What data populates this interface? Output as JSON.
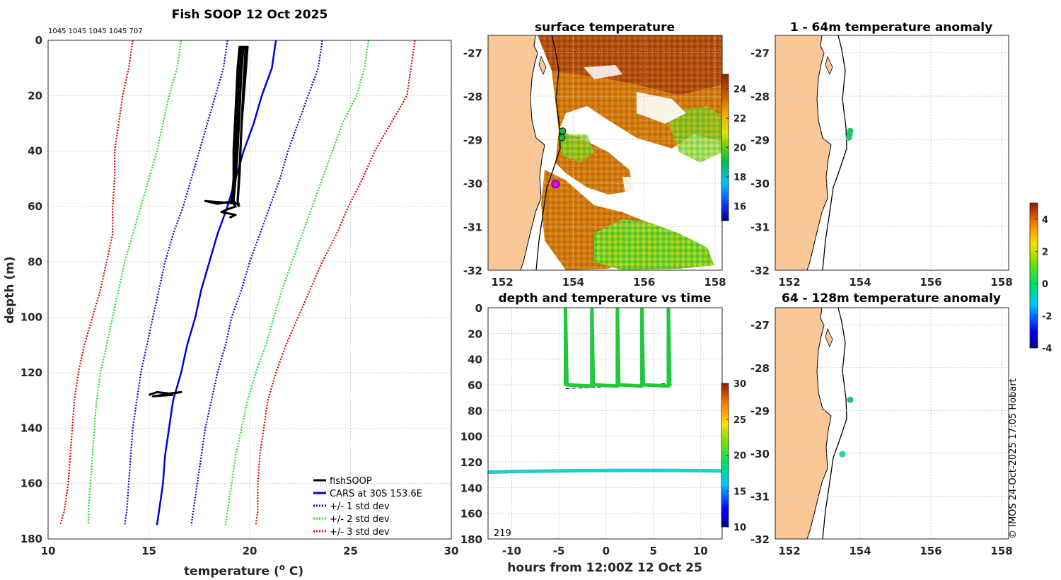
{
  "chart_data": [
    {
      "type": "line",
      "title": "Fish SOOP 12 Oct 2025",
      "xlabel": "temperature (",
      "xlabel_sup": "o",
      "xlabel_tail": " C)",
      "ylabel": "depth (m)",
      "xlim": [
        10,
        30
      ],
      "ylim": [
        180,
        0
      ],
      "xticks": [
        "10",
        "15",
        "20",
        "25",
        "30"
      ],
      "yticks": [
        "0",
        "20",
        "40",
        "60",
        "80",
        "100",
        "120",
        "140",
        "160",
        "180"
      ],
      "profile_counts": "1045 1045 1045 1045 707",
      "legend": [
        "fishSOOP",
        "CARS at 30S 153.6E",
        "+/- 1 std dev",
        "+/- 2 std dev",
        "+/- 3 std dev"
      ],
      "colors": {
        "fishsoop": "#000000",
        "cars": "#0000dd",
        "sd1": "#0000dd",
        "sd2": "#22dd22",
        "sd3": "#dd0000"
      },
      "series": [
        {
          "name": "CARS at 30S 153.6E",
          "points": [
            [
              21.3,
              0
            ],
            [
              21.1,
              10
            ],
            [
              20.6,
              20
            ],
            [
              20.2,
              30
            ],
            [
              19.7,
              40
            ],
            [
              19.3,
              50
            ],
            [
              18.9,
              60
            ],
            [
              18.4,
              70
            ],
            [
              18.0,
              80
            ],
            [
              17.6,
              90
            ],
            [
              17.3,
              100
            ],
            [
              16.9,
              110
            ],
            [
              16.6,
              120
            ],
            [
              16.2,
              130
            ],
            [
              16.0,
              140
            ],
            [
              15.8,
              150
            ],
            [
              15.7,
              160
            ],
            [
              15.5,
              170
            ],
            [
              15.4,
              175
            ]
          ]
        },
        {
          "name": "+1 std dev",
          "points": [
            [
              23.6,
              0
            ],
            [
              23.4,
              10
            ],
            [
              22.9,
              20
            ],
            [
              22.4,
              30
            ],
            [
              21.9,
              40
            ],
            [
              21.5,
              50
            ],
            [
              21.0,
              60
            ],
            [
              20.5,
              70
            ],
            [
              20.0,
              80
            ],
            [
              19.6,
              90
            ],
            [
              19.1,
              100
            ],
            [
              18.8,
              110
            ],
            [
              18.4,
              120
            ],
            [
              18.1,
              130
            ],
            [
              17.8,
              140
            ],
            [
              17.6,
              150
            ],
            [
              17.4,
              160
            ],
            [
              17.2,
              170
            ],
            [
              17.1,
              175
            ]
          ]
        },
        {
          "name": "-1 std dev",
          "points": [
            [
              18.9,
              0
            ],
            [
              18.7,
              10
            ],
            [
              18.3,
              20
            ],
            [
              17.9,
              30
            ],
            [
              17.5,
              40
            ],
            [
              17.1,
              50
            ],
            [
              16.7,
              60
            ],
            [
              16.2,
              70
            ],
            [
              15.8,
              80
            ],
            [
              15.5,
              90
            ],
            [
              15.2,
              100
            ],
            [
              14.9,
              110
            ],
            [
              14.6,
              120
            ],
            [
              14.4,
              130
            ],
            [
              14.2,
              140
            ],
            [
              14.1,
              150
            ],
            [
              14.0,
              160
            ],
            [
              13.9,
              170
            ],
            [
              13.8,
              175
            ]
          ]
        },
        {
          "name": "+2 std dev",
          "points": [
            [
              25.9,
              0
            ],
            [
              25.7,
              10
            ],
            [
              25.3,
              20
            ],
            [
              24.6,
              30
            ],
            [
              24.1,
              40
            ],
            [
              23.6,
              50
            ],
            [
              23.1,
              60
            ],
            [
              22.6,
              70
            ],
            [
              22.1,
              80
            ],
            [
              21.6,
              90
            ],
            [
              21.2,
              100
            ],
            [
              20.8,
              110
            ],
            [
              20.3,
              120
            ],
            [
              19.9,
              130
            ],
            [
              19.6,
              140
            ],
            [
              19.3,
              150
            ],
            [
              19.1,
              160
            ],
            [
              18.9,
              170
            ],
            [
              18.8,
              175
            ]
          ]
        },
        {
          "name": "-2 std dev",
          "points": [
            [
              16.6,
              0
            ],
            [
              16.4,
              10
            ],
            [
              16.0,
              20
            ],
            [
              15.7,
              30
            ],
            [
              15.4,
              40
            ],
            [
              15.0,
              50
            ],
            [
              14.6,
              60
            ],
            [
              14.2,
              70
            ],
            [
              13.8,
              80
            ],
            [
              13.5,
              90
            ],
            [
              13.2,
              100
            ],
            [
              12.9,
              110
            ],
            [
              12.6,
              120
            ],
            [
              12.4,
              130
            ],
            [
              12.3,
              140
            ],
            [
              12.2,
              150
            ],
            [
              12.1,
              160
            ],
            [
              12.0,
              170
            ],
            [
              12.0,
              175
            ]
          ]
        },
        {
          "name": "+3 std dev",
          "points": [
            [
              28.2,
              0
            ],
            [
              28.0,
              10
            ],
            [
              27.8,
              20
            ],
            [
              27.0,
              30
            ],
            [
              26.2,
              40
            ],
            [
              25.6,
              50
            ],
            [
              24.9,
              60
            ],
            [
              24.3,
              70
            ],
            [
              23.6,
              80
            ],
            [
              23.0,
              90
            ],
            [
              22.4,
              100
            ],
            [
              21.8,
              110
            ],
            [
              21.3,
              120
            ],
            [
              20.9,
              130
            ],
            [
              20.7,
              140
            ],
            [
              20.5,
              150
            ],
            [
              20.4,
              160
            ],
            [
              20.4,
              170
            ],
            [
              20.3,
              175
            ]
          ]
        },
        {
          "name": "-3 std dev",
          "points": [
            [
              14.2,
              0
            ],
            [
              14.0,
              10
            ],
            [
              13.7,
              20
            ],
            [
              13.5,
              30
            ],
            [
              13.3,
              40
            ],
            [
              13.3,
              50
            ],
            [
              13.2,
              60
            ],
            [
              13.2,
              70
            ],
            [
              12.9,
              80
            ],
            [
              12.6,
              90
            ],
            [
              12.2,
              100
            ],
            [
              11.8,
              110
            ],
            [
              11.5,
              120
            ],
            [
              11.3,
              130
            ],
            [
              11.2,
              140
            ],
            [
              11.1,
              150
            ],
            [
              11.0,
              160
            ],
            [
              10.8,
              170
            ],
            [
              10.6,
              175
            ]
          ]
        },
        {
          "name": "fishSOOP cast 1",
          "points": [
            [
              19.5,
              2
            ],
            [
              19.4,
              10
            ],
            [
              19.3,
              25
            ],
            [
              19.2,
              40
            ],
            [
              19.2,
              50
            ],
            [
              19.1,
              58
            ],
            [
              19.3,
              60
            ],
            [
              18.9,
              61
            ],
            [
              18.6,
              62
            ],
            [
              19.3,
              63
            ],
            [
              19.0,
              64
            ]
          ]
        },
        {
          "name": "fishSOOP cast 2",
          "points": [
            [
              19.7,
              2
            ],
            [
              19.6,
              10
            ],
            [
              19.5,
              25
            ],
            [
              19.4,
              40
            ],
            [
              19.3,
              50
            ],
            [
              19.2,
              58
            ],
            [
              18.4,
              59
            ],
            [
              17.8,
              58
            ],
            [
              19.5,
              59
            ]
          ]
        },
        {
          "name": "fishSOOP cast 3",
          "points": [
            [
              19.6,
              2
            ],
            [
              19.5,
              10
            ],
            [
              19.4,
              25
            ],
            [
              19.3,
              40
            ],
            [
              19.2,
              58
            ],
            [
              19.5,
              60
            ]
          ]
        },
        {
          "name": "fishSOOP cast 4",
          "points": [
            [
              19.8,
              2
            ],
            [
              19.7,
              15
            ],
            [
              19.6,
              30
            ],
            [
              19.5,
              45
            ],
            [
              19.4,
              58
            ]
          ]
        },
        {
          "name": "fishSOOP cast 5",
          "points": [
            [
              19.9,
              2
            ],
            [
              19.8,
              12
            ],
            [
              19.6,
              30
            ],
            [
              19.5,
              48
            ],
            [
              19.4,
              59
            ]
          ]
        },
        {
          "name": "fishSOOP bottom",
          "points": [
            [
              15.0,
              128
            ],
            [
              15.4,
              127
            ],
            [
              16.0,
              127.5
            ],
            [
              16.6,
              127
            ],
            [
              15.2,
              128.5
            ],
            [
              16.2,
              128
            ]
          ]
        }
      ]
    },
    {
      "type": "heatmap",
      "title": "surface temperature",
      "xlim": [
        151.6,
        158.2
      ],
      "ylim": [
        -32,
        -26.6
      ],
      "xticks": [
        "152",
        "154",
        "156",
        "158"
      ],
      "yticks": [
        "-27",
        "-28",
        "-29",
        "-30",
        "-31",
        "-32"
      ],
      "colorbar_range": [
        15,
        25
      ],
      "colorbar_ticks": [
        "16",
        "18",
        "20",
        "22",
        "24"
      ],
      "markers": [
        [
          153.7,
          -28.8
        ],
        [
          153.68,
          -28.95
        ],
        [
          153.5,
          -30.02
        ]
      ]
    },
    {
      "type": "scatter",
      "title": "1 - 64m temperature anomaly",
      "xlim": [
        151.6,
        158.2
      ],
      "ylim": [
        -32,
        -26.6
      ],
      "xticks": [
        "152",
        "154",
        "156",
        "158"
      ],
      "yticks": [
        "-27",
        "-28",
        "-29",
        "-30",
        "-31",
        "-32"
      ],
      "points": [
        [
          153.72,
          -28.8
        ],
        [
          153.7,
          -28.88
        ],
        [
          153.68,
          -28.95
        ]
      ]
    },
    {
      "type": "scatter",
      "title": "64 - 128m temperature anomaly",
      "xlim": [
        151.6,
        158.2
      ],
      "ylim": [
        -32,
        -26.6
      ],
      "xticks": [
        "152",
        "154",
        "156",
        "158"
      ],
      "yticks": [
        "-27",
        "-28",
        "-29",
        "-30",
        "-31",
        "-32"
      ],
      "points": [
        [
          153.72,
          -28.75,
          "#1fc86f"
        ],
        [
          153.5,
          -30.02,
          "#22d6a4"
        ]
      ]
    },
    {
      "type": "scatter",
      "title": "depth and temperature vs time",
      "xlabel": "hours from 12:00Z 12 Oct 25",
      "xlim": [
        -12.5,
        12.3
      ],
      "ylim": [
        180,
        0
      ],
      "xticks": [
        "-10",
        "-5",
        "0",
        "5",
        "10"
      ],
      "xtick_values": [
        -10,
        -5,
        0,
        5,
        10
      ],
      "yticks": [
        "0",
        "20",
        "40",
        "60",
        "80",
        "100",
        "120",
        "140",
        "160",
        "180"
      ],
      "casts": [
        [
          -4.3,
          -1.5
        ],
        [
          -1.5,
          1.2
        ],
        [
          1.2,
          3.8
        ],
        [
          3.8,
          6.6
        ],
        [
          6.6,
          6.8
        ]
      ],
      "cast_start": -4.3,
      "cast_end": 6.8,
      "bottom_depth": 61,
      "upper_temp_color": "#22c83c",
      "lower_temp_color": "#22cbd0",
      "lower_series_depth": 127,
      "colorbar_range": [
        10,
        30
      ],
      "colorbar_ticks": [
        "10",
        "15",
        "20",
        "25",
        "30"
      ],
      "count_label": "219"
    }
  ],
  "anomaly_colorbar": {
    "range": [
      -4,
      5
    ],
    "ticks": [
      "-4",
      "-2",
      "0",
      "2",
      "4"
    ]
  },
  "credit": "© IMOS 24-Oct-2025 17:05 Hobart"
}
